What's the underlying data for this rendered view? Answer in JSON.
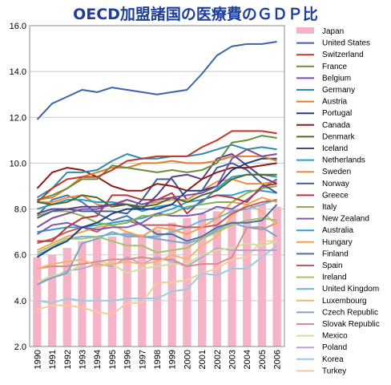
{
  "chart_data": {
    "type": "line",
    "title": "OECD加盟諸国の医療費のＧＤＰ比",
    "xlabel": "",
    "ylabel": "",
    "ylim": [
      2.0,
      16.0
    ],
    "yticks": [
      "2.0",
      "4.0",
      "6.0",
      "8.0",
      "10.0",
      "12.0",
      "14.0",
      "16.0"
    ],
    "categories": [
      "1990",
      "1991",
      "1992",
      "1993",
      "1994",
      "1995",
      "1996",
      "1997",
      "1998",
      "1999",
      "2000",
      "2001",
      "2002",
      "2003",
      "2004",
      "2005",
      "2006"
    ],
    "grid": "horizontal",
    "legend_position": "right",
    "bar_series": {
      "name": "Japan",
      "color": "#f5b3c6",
      "values": [
        5.9,
        6.0,
        6.3,
        6.6,
        6.8,
        6.8,
        7.0,
        6.9,
        7.1,
        7.4,
        7.6,
        7.8,
        7.9,
        8.0,
        8.0,
        8.2,
        8.1
      ]
    },
    "series": [
      {
        "name": "United States",
        "color": "#3b63a8",
        "values": [
          11.9,
          12.6,
          12.9,
          13.2,
          13.1,
          13.3,
          13.2,
          13.1,
          13.0,
          13.1,
          13.2,
          13.9,
          14.7,
          15.1,
          15.2,
          15.2,
          15.3
        ]
      },
      {
        "name": "Switzerland",
        "color": "#c0392b",
        "values": [
          8.3,
          8.9,
          9.3,
          9.4,
          9.4,
          9.7,
          10.1,
          10.2,
          10.3,
          10.3,
          10.3,
          10.7,
          11.0,
          11.4,
          11.4,
          11.4,
          11.3
        ]
      },
      {
        "name": "France",
        "color": "#6a8e3a",
        "values": [
          8.4,
          8.6,
          8.9,
          9.3,
          9.3,
          9.9,
          9.8,
          9.7,
          9.6,
          9.7,
          9.6,
          9.7,
          10.0,
          10.9,
          11.0,
          11.2,
          11.1
        ]
      },
      {
        "name": "Belgium",
        "color": "#7b4ea0",
        "values": [
          7.2,
          7.6,
          7.8,
          8.0,
          8.0,
          8.2,
          8.4,
          8.2,
          8.4,
          8.5,
          8.6,
          8.7,
          9.0,
          10.2,
          10.6,
          10.3,
          10.4
        ]
      },
      {
        "name": "Germany",
        "color": "#2e8bb0",
        "values": [
          8.5,
          8.9,
          9.6,
          9.6,
          9.7,
          10.1,
          10.4,
          10.2,
          10.2,
          10.3,
          10.3,
          10.4,
          10.6,
          10.8,
          10.6,
          10.7,
          10.6
        ]
      },
      {
        "name": "Austria",
        "color": "#e07b2b",
        "values": [
          8.4,
          8.5,
          8.9,
          9.4,
          9.6,
          9.8,
          9.8,
          10.0,
          10.0,
          10.1,
          10.0,
          10.0,
          10.1,
          10.3,
          10.3,
          10.3,
          10.1
        ]
      },
      {
        "name": "Portugal",
        "color": "#1f3f7a",
        "values": [
          5.9,
          6.3,
          6.6,
          7.2,
          7.4,
          7.8,
          8.0,
          8.0,
          8.0,
          8.2,
          8.8,
          8.8,
          9.0,
          9.7,
          10.0,
          10.2,
          10.2
        ]
      },
      {
        "name": "Canada",
        "color": "#8e1a1a",
        "values": [
          8.9,
          9.6,
          9.8,
          9.7,
          9.4,
          9.0,
          8.8,
          8.8,
          9.1,
          9.0,
          8.8,
          9.3,
          9.6,
          9.8,
          9.8,
          9.9,
          10.0
        ]
      },
      {
        "name": "Denmark",
        "color": "#4f6b2a",
        "values": [
          8.3,
          8.2,
          8.3,
          8.6,
          8.5,
          8.1,
          8.2,
          8.1,
          8.2,
          8.5,
          8.3,
          8.6,
          8.8,
          9.3,
          9.5,
          9.5,
          9.5
        ]
      },
      {
        "name": "Iceland",
        "color": "#5c3f88",
        "values": [
          7.8,
          8.0,
          8.0,
          8.1,
          8.1,
          8.2,
          8.2,
          8.0,
          8.6,
          9.4,
          9.5,
          9.3,
          10.2,
          10.4,
          9.9,
          9.4,
          9.1
        ]
      },
      {
        "name": "Netherlands",
        "color": "#27a0c8",
        "values": [
          8.0,
          8.2,
          8.4,
          8.4,
          8.3,
          8.3,
          8.2,
          7.9,
          8.1,
          8.2,
          8.0,
          8.3,
          8.9,
          9.4,
          9.5,
          9.5,
          9.4
        ]
      },
      {
        "name": "Sweden",
        "color": "#f08c3a",
        "values": [
          8.3,
          8.3,
          8.5,
          8.6,
          8.2,
          8.1,
          8.4,
          8.2,
          8.3,
          8.4,
          8.4,
          8.8,
          9.2,
          9.3,
          9.1,
          9.1,
          9.2
        ]
      },
      {
        "name": "Norway",
        "color": "#3d5f96",
        "values": [
          7.6,
          7.9,
          8.0,
          7.9,
          7.9,
          7.9,
          7.8,
          8.4,
          9.3,
          9.3,
          8.4,
          8.8,
          9.8,
          10.0,
          9.7,
          9.1,
          8.7
        ]
      },
      {
        "name": "Greece",
        "color": "#b83a3a",
        "values": [
          6.6,
          6.6,
          7.2,
          7.6,
          7.7,
          8.6,
          8.6,
          8.4,
          8.4,
          8.7,
          7.8,
          8.4,
          8.6,
          8.5,
          8.3,
          9.0,
          9.1
        ]
      },
      {
        "name": "Italy",
        "color": "#8cae4b",
        "values": [
          7.7,
          7.9,
          7.9,
          7.7,
          7.4,
          7.3,
          7.4,
          7.7,
          7.7,
          7.8,
          8.1,
          8.2,
          8.3,
          8.3,
          8.7,
          8.9,
          9.0
        ]
      },
      {
        "name": "New Zealand",
        "color": "#7e5ab0",
        "values": [
          6.9,
          7.3,
          7.4,
          7.2,
          7.1,
          7.2,
          7.2,
          7.4,
          7.8,
          7.7,
          7.7,
          7.8,
          8.1,
          8.0,
          8.4,
          8.9,
          9.3
        ]
      },
      {
        "name": "Australia",
        "color": "#2f9fcf",
        "values": [
          7.0,
          7.1,
          7.2,
          7.2,
          7.3,
          7.4,
          7.5,
          7.6,
          7.8,
          8.0,
          8.3,
          8.4,
          8.6,
          8.6,
          8.8,
          8.8,
          8.7
        ]
      },
      {
        "name": "Hungary",
        "color": "#f4a04b",
        "values": [
          6.2,
          6.5,
          6.8,
          7.0,
          7.2,
          7.3,
          7.0,
          6.8,
          7.2,
          7.1,
          6.9,
          7.2,
          7.6,
          8.3,
          8.2,
          8.5,
          8.3
        ]
      },
      {
        "name": "Finland",
        "color": "#4a6fa5",
        "values": [
          7.7,
          8.4,
          8.6,
          8.3,
          7.8,
          7.5,
          7.7,
          7.3,
          6.9,
          6.9,
          6.6,
          6.8,
          7.2,
          7.4,
          7.4,
          7.5,
          8.2
        ]
      },
      {
        "name": "Spain",
        "color": "#c75a5a",
        "values": [
          6.5,
          6.7,
          7.0,
          7.2,
          7.0,
          7.4,
          7.5,
          7.3,
          7.3,
          7.3,
          7.2,
          7.2,
          7.3,
          7.8,
          8.1,
          8.3,
          8.4
        ]
      },
      {
        "name": "Ireland",
        "color": "#a4c266",
        "values": [
          6.1,
          6.4,
          6.7,
          6.7,
          6.8,
          6.6,
          6.4,
          6.4,
          6.1,
          6.2,
          6.3,
          6.7,
          7.0,
          7.3,
          7.5,
          7.6,
          7.5
        ]
      },
      {
        "name": "United Kingdom",
        "color": "#6fb3d9",
        "values": [
          6.0,
          6.3,
          6.7,
          6.8,
          6.8,
          6.9,
          6.9,
          6.8,
          6.8,
          7.0,
          7.2,
          7.5,
          7.6,
          7.9,
          8.0,
          8.2,
          8.4
        ]
      },
      {
        "name": "Luxembourg",
        "color": "#f7b36a",
        "values": [
          5.4,
          5.6,
          5.7,
          5.8,
          5.5,
          5.6,
          5.7,
          5.6,
          5.7,
          6.0,
          5.8,
          6.4,
          6.8,
          7.7,
          8.2,
          7.9,
          7.3
        ]
      },
      {
        "name": "Czech Republic",
        "color": "#7fa2cc",
        "values": [
          4.7,
          5.0,
          5.2,
          6.5,
          6.7,
          7.0,
          6.8,
          6.8,
          6.7,
          6.6,
          6.5,
          6.7,
          7.1,
          7.4,
          7.2,
          7.2,
          6.8
        ]
      },
      {
        "name": "Slovak Republic",
        "color": "#d98c8c",
        "values": [
          5.4,
          5.5,
          5.5,
          5.6,
          5.7,
          5.8,
          5.8,
          5.9,
          5.8,
          5.8,
          5.5,
          5.6,
          5.6,
          5.9,
          7.2,
          7.1,
          7.4
        ]
      },
      {
        "name": "Mexico",
        "color": "#cfe09a",
        "values": [
          4.8,
          5.1,
          5.2,
          5.6,
          5.7,
          5.6,
          5.2,
          5.4,
          5.5,
          5.6,
          5.6,
          6.0,
          6.2,
          6.3,
          6.5,
          6.4,
          6.6
        ]
      },
      {
        "name": "Poland",
        "color": "#b7a5d8",
        "values": [
          4.8,
          5.0,
          5.3,
          5.4,
          5.6,
          5.5,
          5.9,
          5.6,
          5.9,
          5.7,
          5.5,
          5.9,
          6.3,
          6.2,
          6.2,
          6.2,
          6.2
        ]
      },
      {
        "name": "Korea",
        "color": "#9ec9e6",
        "values": [
          4.0,
          3.9,
          4.1,
          4.0,
          4.0,
          4.0,
          4.1,
          4.1,
          4.1,
          4.4,
          4.5,
          5.2,
          5.1,
          5.4,
          5.4,
          5.9,
          6.4
        ]
      },
      {
        "name": "Turkey",
        "color": "#fbc79e",
        "values": [
          3.6,
          3.8,
          3.8,
          3.7,
          3.5,
          3.4,
          3.9,
          3.9,
          4.8,
          4.8,
          4.9,
          5.2,
          5.4,
          5.8,
          5.9,
          6.6,
          6.6
        ]
      }
    ]
  }
}
